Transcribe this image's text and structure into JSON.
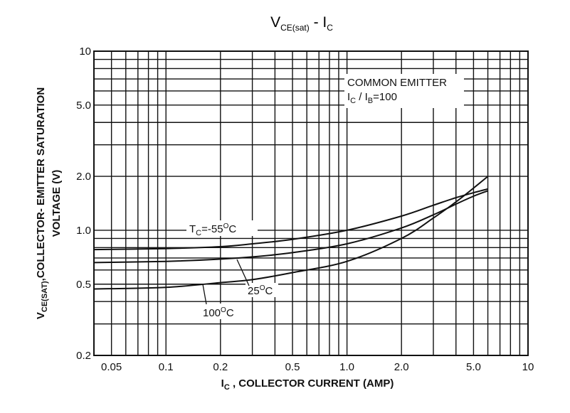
{
  "chart_data": {
    "type": "line",
    "title": {
      "main": "V",
      "sub": "CE(sat)",
      "rest": " - I",
      "rest_sub": "C"
    },
    "xlabel": {
      "main": "I",
      "sub": "C",
      "rest": " , COLLECTOR CURRENT (AMP)"
    },
    "ylabel": {
      "line1_main": "V",
      "line1_sub": "CE(SAT)",
      "line1_rest": ",COLLECTOR- EMITTER SATURATION",
      "line2": "VOLTAGE (V)"
    },
    "x_scale": "log",
    "y_scale": "log",
    "xlim": [
      0.04,
      10
    ],
    "ylim": [
      0.2,
      10
    ],
    "x_ticks": [
      {
        "value": 0.05,
        "label": "0.05"
      },
      {
        "value": 0.1,
        "label": "0.1"
      },
      {
        "value": 0.2,
        "label": "0.2"
      },
      {
        "value": 0.5,
        "label": "0.5"
      },
      {
        "value": 1.0,
        "label": "1.0"
      },
      {
        "value": 2.0,
        "label": "2.0"
      },
      {
        "value": 5.0,
        "label": "5.0"
      },
      {
        "value": 10,
        "label": "10"
      }
    ],
    "y_ticks": [
      {
        "value": 0.2,
        "label": "0.2"
      },
      {
        "value": 0.5,
        "label": "0.5"
      },
      {
        "value": 1.0,
        "label": "1.0"
      },
      {
        "value": 2.0,
        "label": "2.0"
      },
      {
        "value": 5.0,
        "label": "5.0"
      },
      {
        "value": 10,
        "label": "10"
      }
    ],
    "grid": true,
    "annotation": {
      "line1": "COMMON EMITTER",
      "line2_a": "I",
      "line2_a_sub": "C",
      "line2_b": " / I",
      "line2_b_sub": "B",
      "line2_c": "=100"
    },
    "series": [
      {
        "label_main": "T",
        "label_sub": "C",
        "label_rest": "=-55",
        "label_deg": "O",
        "label_unit": "C",
        "x": [
          0.04,
          0.1,
          0.2,
          0.3,
          0.5,
          1.0,
          2.0,
          3.0,
          4.0,
          5.0,
          6.0
        ],
        "y": [
          0.78,
          0.79,
          0.81,
          0.84,
          0.89,
          1.0,
          1.2,
          1.38,
          1.52,
          1.62,
          1.7
        ]
      },
      {
        "label_main": "25",
        "label_deg": "O",
        "label_unit": "C",
        "x": [
          0.04,
          0.1,
          0.2,
          0.3,
          0.5,
          1.0,
          2.0,
          3.0,
          4.0,
          5.0,
          6.0
        ],
        "y": [
          0.66,
          0.67,
          0.69,
          0.71,
          0.75,
          0.84,
          1.03,
          1.22,
          1.4,
          1.55,
          1.66
        ]
      },
      {
        "label_main": "100",
        "label_deg": "O",
        "label_unit": "C",
        "x": [
          0.04,
          0.1,
          0.2,
          0.3,
          0.5,
          1.0,
          2.0,
          3.0,
          4.0,
          5.0,
          6.0
        ],
        "y": [
          0.47,
          0.48,
          0.51,
          0.53,
          0.58,
          0.67,
          0.9,
          1.17,
          1.44,
          1.72,
          2.0
        ]
      }
    ]
  }
}
